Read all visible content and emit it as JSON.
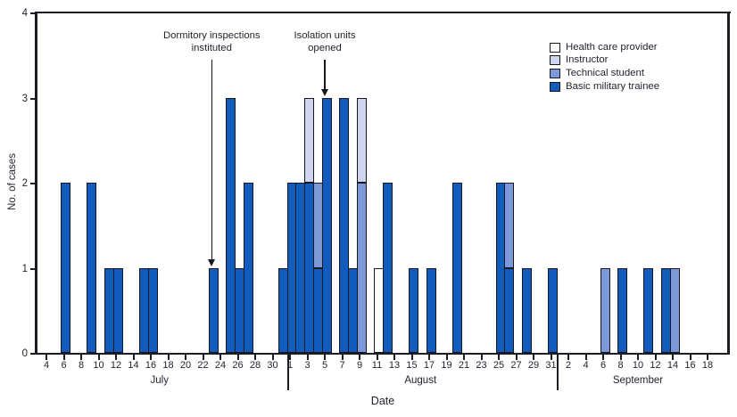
{
  "chart_data": {
    "type": "bar",
    "stacked": true,
    "title": "",
    "xlabel": "Date",
    "ylabel": "No. of cases",
    "ylim": [
      0,
      4
    ],
    "yticks": [
      0,
      1,
      2,
      3,
      4
    ],
    "grid": false,
    "legend": {
      "position": "top-right",
      "items": [
        {
          "id": "health_care_provider",
          "label": "Health care provider",
          "color": "#ffffff"
        },
        {
          "id": "instructor",
          "label": "Instructor",
          "color": "#cfd5ed"
        },
        {
          "id": "technical_student",
          "label": "Technical student",
          "color": "#7d98d8"
        },
        {
          "id": "basic_military_trainee",
          "label": "Basic military trainee",
          "color": "#125cbe"
        }
      ]
    },
    "months": [
      {
        "name": "July",
        "first_day": 4,
        "days_in_month": 31,
        "tick_days": [
          4,
          6,
          8,
          10,
          12,
          14,
          16,
          18,
          20,
          22,
          24,
          26,
          28,
          30
        ]
      },
      {
        "name": "August",
        "first_day": 1,
        "days_in_month": 31,
        "tick_days": [
          1,
          3,
          5,
          7,
          9,
          11,
          13,
          15,
          17,
          19,
          21,
          23,
          25,
          27,
          29,
          31
        ]
      },
      {
        "name": "September",
        "first_day": 1,
        "days_in_month": 30,
        "tick_days": [
          2,
          4,
          6,
          8,
          10,
          12,
          14,
          16,
          18
        ]
      }
    ],
    "bars": [
      {
        "month": "July",
        "day": 6,
        "segments": [
          {
            "category": "basic_military_trainee",
            "count": 2
          }
        ]
      },
      {
        "month": "July",
        "day": 9,
        "segments": [
          {
            "category": "basic_military_trainee",
            "count": 2
          }
        ]
      },
      {
        "month": "July",
        "day": 11,
        "segments": [
          {
            "category": "basic_military_trainee",
            "count": 1
          }
        ]
      },
      {
        "month": "July",
        "day": 12,
        "segments": [
          {
            "category": "basic_military_trainee",
            "count": 1
          }
        ]
      },
      {
        "month": "July",
        "day": 15,
        "segments": [
          {
            "category": "basic_military_trainee",
            "count": 1
          }
        ]
      },
      {
        "month": "July",
        "day": 16,
        "segments": [
          {
            "category": "basic_military_trainee",
            "count": 1
          }
        ]
      },
      {
        "month": "July",
        "day": 23,
        "segments": [
          {
            "category": "basic_military_trainee",
            "count": 1
          }
        ]
      },
      {
        "month": "July",
        "day": 25,
        "segments": [
          {
            "category": "basic_military_trainee",
            "count": 3
          }
        ]
      },
      {
        "month": "July",
        "day": 26,
        "segments": [
          {
            "category": "basic_military_trainee",
            "count": 1
          }
        ]
      },
      {
        "month": "July",
        "day": 27,
        "segments": [
          {
            "category": "basic_military_trainee",
            "count": 2
          }
        ]
      },
      {
        "month": "July",
        "day": 31,
        "segments": [
          {
            "category": "basic_military_trainee",
            "count": 1
          }
        ]
      },
      {
        "month": "August",
        "day": 1,
        "segments": [
          {
            "category": "basic_military_trainee",
            "count": 2
          }
        ]
      },
      {
        "month": "August",
        "day": 2,
        "segments": [
          {
            "category": "basic_military_trainee",
            "count": 2
          }
        ]
      },
      {
        "month": "August",
        "day": 3,
        "segments": [
          {
            "category": "basic_military_trainee",
            "count": 2
          },
          {
            "category": "instructor",
            "count": 1
          }
        ]
      },
      {
        "month": "August",
        "day": 4,
        "segments": [
          {
            "category": "basic_military_trainee",
            "count": 1
          },
          {
            "category": "technical_student",
            "count": 1
          }
        ]
      },
      {
        "month": "August",
        "day": 5,
        "segments": [
          {
            "category": "basic_military_trainee",
            "count": 3
          }
        ]
      },
      {
        "month": "August",
        "day": 7,
        "segments": [
          {
            "category": "basic_military_trainee",
            "count": 3
          }
        ]
      },
      {
        "month": "August",
        "day": 8,
        "segments": [
          {
            "category": "basic_military_trainee",
            "count": 1
          }
        ]
      },
      {
        "month": "August",
        "day": 9,
        "segments": [
          {
            "category": "technical_student",
            "count": 2
          },
          {
            "category": "instructor",
            "count": 1
          }
        ]
      },
      {
        "month": "August",
        "day": 11,
        "segments": [
          {
            "category": "health_care_provider",
            "count": 1
          }
        ]
      },
      {
        "month": "August",
        "day": 12,
        "segments": [
          {
            "category": "basic_military_trainee",
            "count": 2
          }
        ]
      },
      {
        "month": "August",
        "day": 15,
        "segments": [
          {
            "category": "basic_military_trainee",
            "count": 1
          }
        ]
      },
      {
        "month": "August",
        "day": 17,
        "segments": [
          {
            "category": "basic_military_trainee",
            "count": 1
          }
        ]
      },
      {
        "month": "August",
        "day": 20,
        "segments": [
          {
            "category": "basic_military_trainee",
            "count": 2
          }
        ]
      },
      {
        "month": "August",
        "day": 25,
        "segments": [
          {
            "category": "basic_military_trainee",
            "count": 2
          }
        ]
      },
      {
        "month": "August",
        "day": 26,
        "segments": [
          {
            "category": "basic_military_trainee",
            "count": 1
          },
          {
            "category": "technical_student",
            "count": 1
          }
        ]
      },
      {
        "month": "August",
        "day": 28,
        "segments": [
          {
            "category": "basic_military_trainee",
            "count": 1
          }
        ]
      },
      {
        "month": "August",
        "day": 31,
        "segments": [
          {
            "category": "basic_military_trainee",
            "count": 1
          }
        ]
      },
      {
        "month": "September",
        "day": 6,
        "segments": [
          {
            "category": "technical_student",
            "count": 1
          }
        ]
      },
      {
        "month": "September",
        "day": 8,
        "segments": [
          {
            "category": "basic_military_trainee",
            "count": 1
          }
        ]
      },
      {
        "month": "September",
        "day": 11,
        "segments": [
          {
            "category": "basic_military_trainee",
            "count": 1
          }
        ]
      },
      {
        "month": "September",
        "day": 13,
        "segments": [
          {
            "category": "basic_military_trainee",
            "count": 1
          }
        ]
      },
      {
        "month": "September",
        "day": 14,
        "segments": [
          {
            "category": "technical_student",
            "count": 1
          }
        ]
      }
    ],
    "annotations": [
      {
        "id": "dormitory-inspections",
        "text_lines": [
          "Dormitory inspections",
          "instituted"
        ],
        "month": "July",
        "day": 23
      },
      {
        "id": "isolation-units",
        "text_lines": [
          "Isolation units",
          "opened"
        ],
        "month": "August",
        "day": 5
      }
    ]
  }
}
